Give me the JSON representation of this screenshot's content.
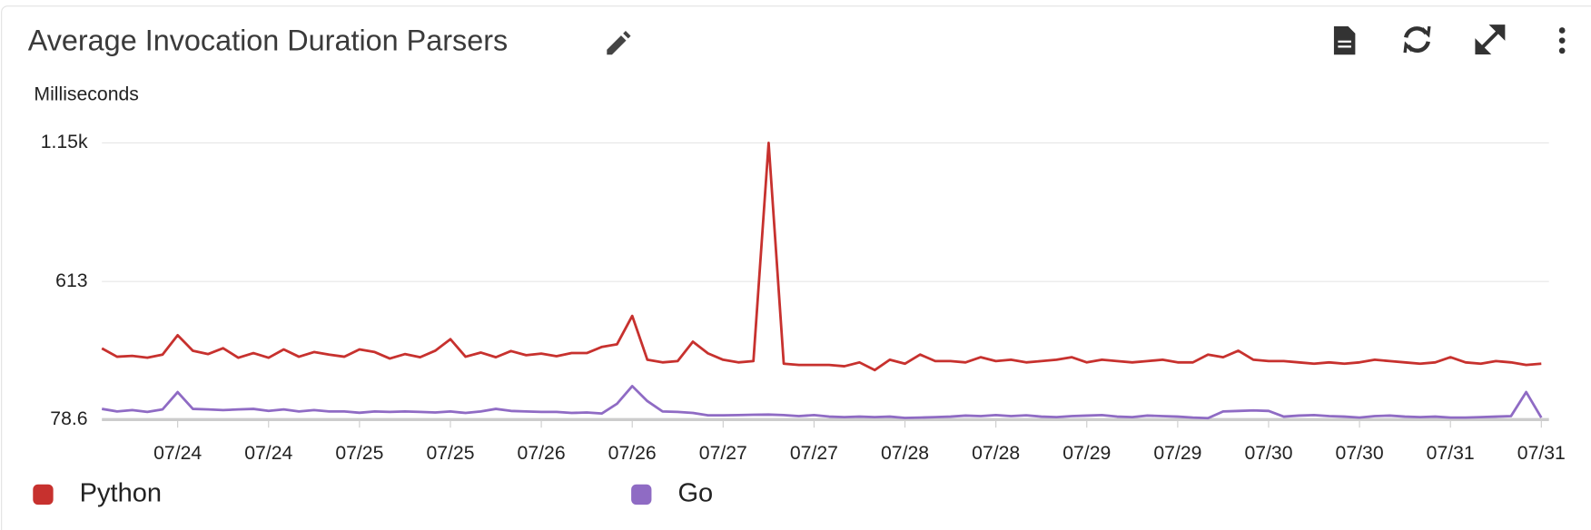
{
  "chart_data": {
    "type": "line",
    "title": "Average Invocation Duration Parsers",
    "y_label": "Milliseconds",
    "x": [
      2,
      4,
      6,
      8,
      10,
      12,
      14,
      16,
      18,
      20,
      22,
      24,
      26,
      28,
      30,
      32,
      34,
      36,
      38,
      40,
      42,
      44,
      46,
      48,
      50,
      52,
      54,
      56,
      58,
      60,
      62,
      64,
      66,
      68,
      70,
      72,
      74,
      76,
      78,
      80,
      82,
      84,
      86,
      88,
      90,
      92,
      94,
      96,
      98,
      100,
      102,
      104,
      106,
      108,
      110,
      112,
      114,
      116,
      118,
      120,
      122,
      124,
      126,
      128,
      130,
      132,
      134,
      136,
      138,
      140,
      142,
      144,
      146,
      148,
      150,
      152,
      154,
      156,
      158,
      160,
      162,
      164,
      166,
      168,
      170,
      172,
      174,
      176,
      178,
      180,
      182,
      184,
      186,
      188,
      190,
      192
    ],
    "series": [
      {
        "name": "Python",
        "color": "#c7312e",
        "values": [
          354,
          322,
          325,
          318,
          330,
          405,
          345,
          332,
          355,
          318,
          336,
          318,
          350,
          322,
          340,
          330,
          322,
          350,
          340,
          315,
          332,
          320,
          345,
          390,
          322,
          338,
          320,
          344,
          328,
          334,
          324,
          336,
          336,
          360,
          370,
          480,
          310,
          300,
          305,
          380,
          335,
          310,
          300,
          305,
          1150,
          295,
          290,
          290,
          290,
          285,
          300,
          270,
          310,
          295,
          330,
          305,
          305,
          300,
          320,
          305,
          310,
          300,
          305,
          310,
          320,
          300,
          310,
          305,
          300,
          305,
          310,
          300,
          300,
          330,
          320,
          345,
          310,
          305,
          305,
          300,
          295,
          300,
          295,
          300,
          310,
          305,
          300,
          295,
          300,
          320,
          300,
          295,
          305,
          300,
          290,
          295
        ]
      },
      {
        "name": "Go",
        "color": "#8f6bc4",
        "values": [
          120,
          110,
          115,
          108,
          118,
          185,
          120,
          118,
          115,
          118,
          120,
          112,
          118,
          110,
          115,
          110,
          110,
          105,
          110,
          108,
          110,
          108,
          106,
          110,
          104,
          110,
          120,
          112,
          110,
          108,
          108,
          104,
          106,
          102,
          140,
          208,
          150,
          110,
          108,
          104,
          95,
          95,
          96,
          97,
          98,
          96,
          92,
          96,
          90,
          88,
          90,
          88,
          90,
          85,
          86,
          88,
          90,
          94,
          92,
          96,
          92,
          95,
          90,
          88,
          92,
          94,
          96,
          90,
          88,
          94,
          92,
          90,
          86,
          84,
          110,
          112,
          114,
          112,
          90,
          94,
          96,
          92,
          90,
          86,
          92,
          94,
          90,
          88,
          90,
          86,
          86,
          88,
          90,
          92,
          185,
          86
        ]
      }
    ],
    "xlim": [
      2,
      193
    ],
    "xticks": [
      {
        "value": 12,
        "label": "07/24"
      },
      {
        "value": 24,
        "label": "07/24"
      },
      {
        "value": 36,
        "label": "07/25"
      },
      {
        "value": 48,
        "label": "07/25"
      },
      {
        "value": 60,
        "label": "07/26"
      },
      {
        "value": 72,
        "label": "07/26"
      },
      {
        "value": 84,
        "label": "07/27"
      },
      {
        "value": 96,
        "label": "07/27"
      },
      {
        "value": 108,
        "label": "07/28"
      },
      {
        "value": 120,
        "label": "07/28"
      },
      {
        "value": 132,
        "label": "07/29"
      },
      {
        "value": 144,
        "label": "07/29"
      },
      {
        "value": 156,
        "label": "07/30"
      },
      {
        "value": 168,
        "label": "07/30"
      },
      {
        "value": 180,
        "label": "07/31"
      },
      {
        "value": 192,
        "label": "07/31"
      }
    ],
    "ylim": [
      78.6,
      1150
    ],
    "yticks": [
      78.6,
      613,
      {
        "value": 1150,
        "label": "1.15k"
      }
    ],
    "grid": true,
    "legend": "bottom"
  }
}
